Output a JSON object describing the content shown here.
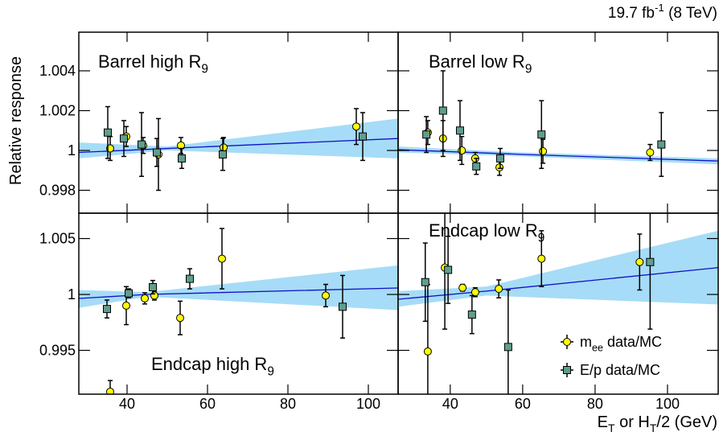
{
  "lumi": [
    {
      "text": "19.7 fb"
    },
    {
      "sup": "-1"
    },
    {
      "text": " (8 TeV)"
    }
  ],
  "y_label": [
    {
      "text": "Relative response"
    }
  ],
  "x_label": [
    {
      "text": "E"
    },
    {
      "sub": "T"
    },
    {
      "text": " or H"
    },
    {
      "sub": "T"
    },
    {
      "text": "/2 (GeV)"
    }
  ],
  "legend": {
    "position": "lower right",
    "panel": 3,
    "entries": [
      {
        "name": [
          {
            "text": "m"
          },
          {
            "sub": "ee"
          },
          {
            "text": " data/MC"
          }
        ],
        "color": "#ffff00",
        "marker": "circle"
      },
      {
        "name": [
          {
            "text": "E/p data/MC"
          }
        ],
        "color": "#5f9e8f",
        "marker": "square"
      }
    ]
  },
  "chart_data": [
    {
      "type": "errorbar",
      "title": [
        {
          "text": "Barrel high R"
        },
        {
          "sub": "9"
        }
      ],
      "xlim": [
        28,
        107.4
      ],
      "ylim": [
        0.99685,
        1.00594
      ],
      "yticks": [
        0.998,
        1,
        1.002,
        1.004
      ],
      "series": [
        {
          "x": [
            35.8,
            39.8,
            44,
            47.8,
            53.4,
            64,
            97
          ],
          "values": [
            1.0001,
            1.0007,
            1.00025,
            0.9998,
            1.00025,
            1.00015,
            1.0012
          ],
          "errors": [
            0.0006,
            0.0005,
            0.0004,
            0.0018,
            0.0004,
            0.0005,
            0.0009
          ]
        },
        {
          "x": [
            35.2,
            39.2,
            43.6,
            47.4,
            53.6,
            63.8,
            98.6
          ],
          "values": [
            1.0009,
            1.0006,
            1.0003,
            0.9999,
            0.9996,
            0.9998,
            1.0007
          ],
          "errors": [
            0.0013,
            0.0009,
            0.0016,
            0.0007,
            0.0005,
            0.0008,
            0.0012
          ]
        }
      ],
      "fit": {
        "color": "#1010c8",
        "band_color": "#a6dcf7",
        "x": [
          28,
          50,
          107.4
        ],
        "values": [
          0.9999,
          1.0001,
          1.0006
        ],
        "upper": [
          1.0004,
          1.0002,
          1.0016
        ],
        "lower": [
          0.9996,
          1.0,
          0.9996
        ]
      }
    },
    {
      "type": "errorbar",
      "title": [
        {
          "text": "Barrel low R"
        },
        {
          "sub": "9"
        }
      ],
      "xlim": [
        25.6,
        114
      ],
      "ylim": [
        0.99685,
        1.00594
      ],
      "series": [
        {
          "x": [
            33.8,
            38,
            43.2,
            46.9,
            53.6,
            65.6,
            95.2
          ],
          "values": [
            1.0009,
            1.0006,
            1.0,
            0.9996,
            0.99915,
            0.99996,
            0.9999
          ],
          "errors": [
            0.0006,
            0.0009,
            0.0007,
            0.0003,
            0.0004,
            0.0006,
            0.0004
          ]
        },
        {
          "x": [
            33.4,
            38,
            42.7,
            47.2,
            53.8,
            65.2,
            98.3
          ],
          "values": [
            1.0008,
            1.002,
            1.001,
            0.9992,
            0.9996,
            1.0008,
            1.0003
          ],
          "errors": [
            0.0009,
            0.002,
            0.0015,
            0.0004,
            0.0005,
            0.0017,
            0.0016
          ]
        }
      ],
      "fit": {
        "color": "#1010c8",
        "band_color": "#a6dcf7",
        "x": [
          25.6,
          60,
          114
        ],
        "values": [
          1.00004,
          0.9998,
          0.99947
        ],
        "upper": [
          1.0002,
          0.9999,
          0.9996
        ],
        "lower": [
          0.9999,
          0.9997,
          0.9993
        ]
      }
    },
    {
      "type": "errorbar",
      "title": [
        {
          "text": "Endcap high R"
        },
        {
          "sub": "9"
        }
      ],
      "xlim": [
        28,
        107.4
      ],
      "ylim": [
        0.99108,
        1.00727
      ],
      "yticks": [
        0.995,
        1,
        1.005
      ],
      "xticks": [
        40,
        60,
        80,
        100
      ],
      "series": [
        {
          "x": [
            35.8,
            39.8,
            44.4,
            46.8,
            53.2,
            63.6,
            89.4
          ],
          "values": [
            0.9913,
            0.999,
            0.99965,
            0.9999,
            0.9979,
            1.0032,
            0.9999
          ],
          "errors": [
            0.001,
            0.0017,
            0.0005,
            0.0004,
            0.0015,
            0.0027,
            0.001
          ]
        },
        {
          "x": [
            35,
            40.4,
            46.4,
            55.6,
            93.6
          ],
          "values": [
            0.9987,
            1.0001,
            1.00065,
            1.0014,
            0.9989
          ],
          "errors": [
            0.0008,
            0.0004,
            0.0006,
            0.0009,
            0.0028
          ]
        }
      ],
      "fit": {
        "color": "#1010c8",
        "band_color": "#a6dcf7",
        "x": [
          28,
          45,
          107.4
        ],
        "values": [
          0.99964,
          1.0,
          1.00058
        ],
        "upper": [
          1.0004,
          1.0002,
          1.0026
        ],
        "lower": [
          0.9988,
          0.9998,
          0.9986
        ]
      }
    },
    {
      "type": "errorbar",
      "title": [
        {
          "text": "Endcap low R"
        },
        {
          "sub": "9"
        }
      ],
      "xlim": [
        25.6,
        114
      ],
      "ylim": [
        0.99108,
        1.00727
      ],
      "xticks": [
        40,
        60,
        80,
        100
      ],
      "series": [
        {
          "x": [
            33.8,
            38.5,
            43.4,
            46.9,
            53.4,
            65.2,
            92.3
          ],
          "values": [
            0.9949,
            1.0024,
            1.0006,
            1.0002,
            1.0005,
            1.0032,
            1.0029
          ],
          "errors": [
            0.006,
            0.0055,
            0.0003,
            0.0004,
            0.0008,
            0.0025,
            0.0025
          ]
        },
        {
          "x": [
            33.1,
            39.4,
            46,
            56,
            95.2
          ],
          "values": [
            1.0011,
            1.0022,
            0.9982,
            0.9953,
            1.0029
          ],
          "errors": [
            0.0035,
            0.003,
            0.0017,
            0.0051,
            0.006
          ]
        }
      ],
      "fit": {
        "color": "#1010c8",
        "band_color": "#a6dcf7",
        "x": [
          25.6,
          50,
          114
        ],
        "values": [
          0.99957,
          1.0003,
          1.0024
        ],
        "upper": [
          1.0003,
          1.0007,
          1.0057
        ],
        "lower": [
          0.9989,
          0.9999,
          0.9991
        ]
      }
    }
  ]
}
